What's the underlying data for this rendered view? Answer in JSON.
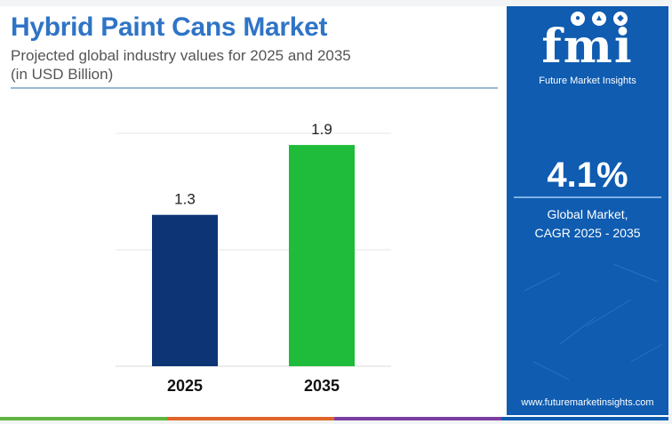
{
  "header": {
    "title": "Hybrid Paint Cans Market",
    "subtitle_line1": "Projected global industry values for 2025 and 2035",
    "subtitle_line2": "(in USD Billion)"
  },
  "sidebar": {
    "logo_text": "fmi",
    "logo_subtitle": "Future Market Insights",
    "cagr_value": "4.1%",
    "cagr_label_line1": "Global Market,",
    "cagr_label_line2": "CAGR 2025 - 2035",
    "website": "www.futuremarketinsights.com"
  },
  "colors": {
    "title": "#2f74c6",
    "sidebar_bg": "#0f5cb1",
    "bar_2025": "#0d3575",
    "bar_2035": "#1fbb3a",
    "stripe": [
      "#5fb53f",
      "#e0642a",
      "#7a3fa0",
      "#0f5cb1"
    ]
  },
  "chart_data": {
    "type": "bar",
    "categories": [
      "2025",
      "2035"
    ],
    "values": [
      1.3,
      1.9
    ],
    "data_labels": [
      "1.3",
      "1.9"
    ],
    "title": "Hybrid Paint Cans Market",
    "subtitle": "Projected global industry values for 2025 and 2035 (in USD Billion)",
    "xlabel": "",
    "ylabel": "",
    "ylim": [
      0,
      2.0
    ],
    "grid": true,
    "legend": "none"
  }
}
